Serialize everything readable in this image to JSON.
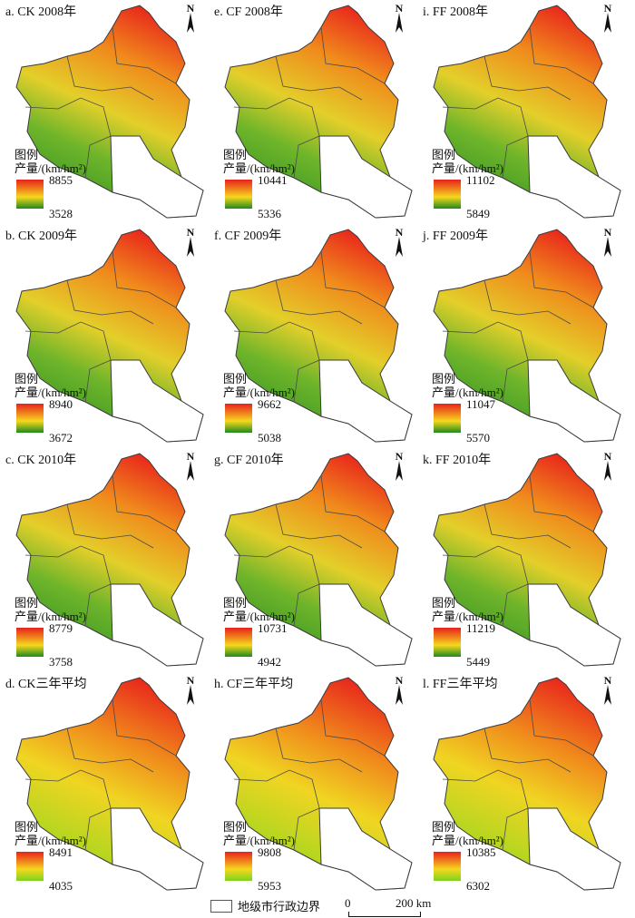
{
  "panels": [
    {
      "title": "a. CK 2008年",
      "max": "8855",
      "min": "3528",
      "ramp": "high"
    },
    {
      "title": "e. CF 2008年",
      "max": "10441",
      "min": "5336",
      "ramp": "high"
    },
    {
      "title": "i. FF 2008年",
      "max": "11102",
      "min": "5849",
      "ramp": "high"
    },
    {
      "title": "b. CK 2009年",
      "max": "8940",
      "min": "3672",
      "ramp": "high"
    },
    {
      "title": "f. CF 2009年",
      "max": "9662",
      "min": "5038",
      "ramp": "high"
    },
    {
      "title": "j. FF 2009年",
      "max": "11047",
      "min": "5570",
      "ramp": "high"
    },
    {
      "title": "c. CK 2010年",
      "max": "8779",
      "min": "3758",
      "ramp": "high"
    },
    {
      "title": "g. CF 2010年",
      "max": "10731",
      "min": "4942",
      "ramp": "high"
    },
    {
      "title": "k. FF 2010年",
      "max": "11219",
      "min": "5449",
      "ramp": "high"
    },
    {
      "title": "d. CK三年平均",
      "max": "8491",
      "min": "4035",
      "ramp": "avg"
    },
    {
      "title": "h. CF三年平均",
      "max": "9808",
      "min": "5953",
      "ramp": "avg"
    },
    {
      "title": "l. FF三年平均",
      "max": "10385",
      "min": "6302",
      "ramp": "avg"
    }
  ],
  "legend": {
    "title": "图例",
    "unit": "产量/(km/hm²)"
  },
  "north_label": "N",
  "footer": {
    "boundary_label": "地级市行政边界",
    "scale_zero": "0",
    "scale_max": "200 km"
  },
  "colors": {
    "high": "#e8221c",
    "mid_high": "#f08a1c",
    "mid": "#f5d81e",
    "low_yearly": "#1f8a1f",
    "low_avg": "#7cd31f",
    "outline": "#3a3a3a"
  }
}
